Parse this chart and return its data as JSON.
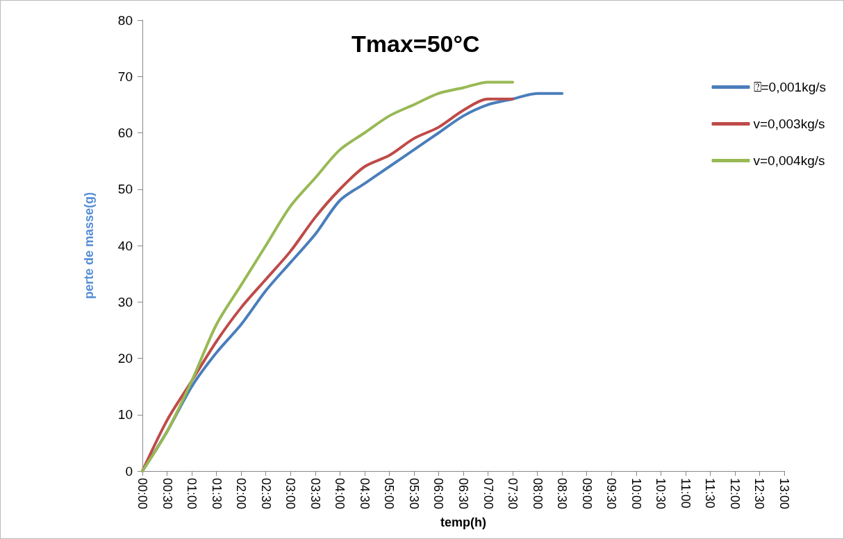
{
  "chart_data": {
    "type": "line",
    "title": "Tmax=50°C",
    "xlabel": "temp(h)",
    "ylabel": "perte de masse(g)",
    "categories": [
      "00:00",
      "00:30",
      "01:00",
      "01:30",
      "02:00",
      "02:30",
      "03:00",
      "03:30",
      "04:00",
      "04:30",
      "05:00",
      "05:30",
      "06:00",
      "06:30",
      "07:00",
      "07:30",
      "08:00",
      "08:30",
      "09:00",
      "09:30",
      "10:00",
      "10:30",
      "11:00",
      "11:30",
      "12:00",
      "12:30",
      "13:00"
    ],
    "series": [
      {
        "name": "⍰=0,001kg/s",
        "color": "#4a7ebb",
        "values": [
          0,
          7,
          15,
          21,
          26,
          32,
          37,
          42,
          48,
          51,
          54,
          57,
          60,
          63,
          65,
          66,
          67,
          67,
          null,
          null,
          null,
          null,
          null,
          null,
          null,
          null,
          null
        ]
      },
      {
        "name": "v=0,003kg/s",
        "color": "#be4b48",
        "values": [
          0,
          9,
          16,
          23,
          29,
          34,
          39,
          45,
          50,
          54,
          56,
          59,
          61,
          64,
          66,
          66,
          null,
          null,
          null,
          null,
          null,
          null,
          null,
          null,
          null,
          null,
          null
        ]
      },
      {
        "name": "v=0,004kg/s",
        "color": "#98b954",
        "values": [
          0,
          7,
          16,
          26,
          33,
          40,
          47,
          52,
          57,
          60,
          63,
          65,
          67,
          68,
          69,
          69,
          null,
          null,
          null,
          null,
          null,
          null,
          null,
          null,
          null,
          null,
          null
        ]
      }
    ],
    "ylim": [
      0,
      80
    ],
    "yticks": [
      0,
      10,
      20,
      30,
      40,
      50,
      60,
      70,
      80
    ],
    "grid": false,
    "legend": "right",
    "marker": "none",
    "line_style": "solid"
  }
}
